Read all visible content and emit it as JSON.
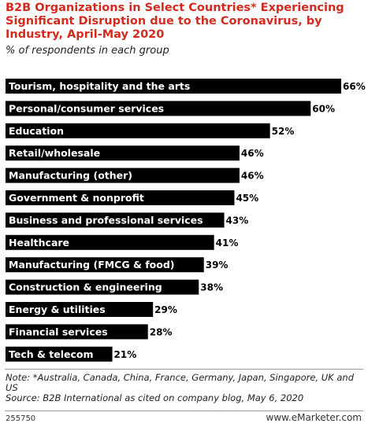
{
  "header": {
    "title": "B2B Organizations in Select Countries* Experiencing Significant Disruption due to the Coronavirus, by Industry, April-May 2020",
    "subtitle": "% of respondents in each group"
  },
  "footer": {
    "note": "Note: *Australia, Canada, China, France, Germany, Japan, Singapore, UK and US",
    "source": "Source: B2B International as cited on company blog, May 6, 2020",
    "chart_id": "255750",
    "brand": "www.eMarketer.com"
  },
  "colors": {
    "title": "#d52b1e",
    "bar": "#000000",
    "bar_label": "#ffffff"
  },
  "chart_data": {
    "type": "bar",
    "orientation": "horizontal",
    "title": "B2B Organizations in Select Countries* Experiencing Significant Disruption due to the Coronavirus, by Industry, April-May 2020",
    "subtitle": "% of respondents in each group",
    "categories": [
      "Tourism, hospitality and the arts",
      "Personal/consumer services",
      "Education",
      "Retail/wholesale",
      "Manufacturing (other)",
      "Government & nonprofit",
      "Business and professional services",
      "Healthcare",
      "Manufacturing (FMCG & food)",
      "Construction & engineering",
      "Energy & utilities",
      "Financial services",
      "Tech & telecom"
    ],
    "values": [
      66,
      60,
      52,
      46,
      46,
      45,
      43,
      41,
      39,
      38,
      29,
      28,
      21
    ],
    "value_labels": [
      "66%",
      "60%",
      "52%",
      "46%",
      "46%",
      "45%",
      "43%",
      "41%",
      "39%",
      "38%",
      "29%",
      "28%",
      "21%"
    ],
    "unit": "%",
    "xlim": [
      0,
      66
    ],
    "grid": false
  }
}
